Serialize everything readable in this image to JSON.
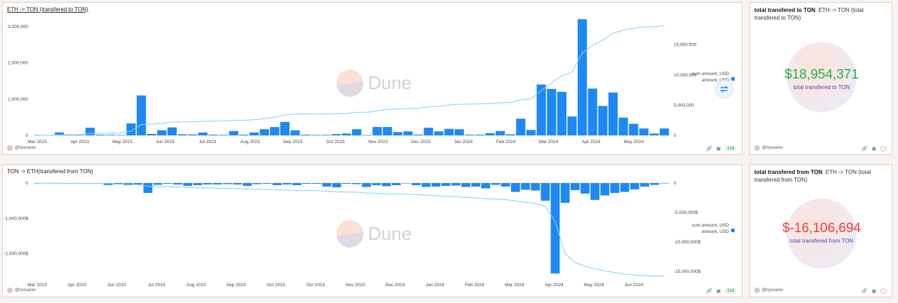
{
  "brand": "Dune",
  "colors": {
    "bar": "#1e88f5",
    "positive": "#22b04b",
    "negative": "#e8413c",
    "subtitle": "#5b3fa0",
    "line": "#8fd0f7"
  },
  "chart_data": [
    {
      "type": "bar",
      "title": "ETH -> TON (transfered to TON)",
      "xlabel": "",
      "ylabel": "",
      "ylim": [
        0,
        3150000
      ],
      "y2lim": [
        0,
        18900000
      ],
      "yticks": [
        "0",
        "1,000,000",
        "2,000,000",
        "3,000,000"
      ],
      "y2ticks": [
        "0",
        "5,000,000",
        "10,000,000",
        "15,000,000"
      ],
      "xticks": [
        "Mar 2023",
        "Apr 2023",
        "May 2023",
        "Jun 2023",
        "Jul 2023",
        "Aug 2023",
        "Sep 2023",
        "Oct 2023",
        "Nov 2023",
        "Dec 2023",
        "Jan 2024",
        "Feb 2024",
        "Mar 2024",
        "Apr 2024",
        "May 2024"
      ],
      "legend": [
        "cum amount, USD",
        "amount, USD"
      ],
      "series": [
        {
          "name": "amount, USD",
          "values": [
            10000,
            5000,
            80000,
            15000,
            10000,
            210000,
            20000,
            15000,
            5000,
            330000,
            1100000,
            40000,
            140000,
            220000,
            30000,
            25000,
            80000,
            20000,
            15000,
            120000,
            20000,
            80000,
            170000,
            230000,
            370000,
            140000,
            20000,
            15000,
            15000,
            35000,
            50000,
            170000,
            10000,
            230000,
            230000,
            90000,
            110000,
            20000,
            210000,
            110000,
            180000,
            170000,
            20000,
            20000,
            60000,
            120000,
            30000,
            460000,
            150000,
            1400000,
            1280000,
            1200000,
            520000,
            3200000,
            1290000,
            810000,
            1180000,
            490000,
            320000,
            190000,
            50000,
            190000
          ]
        },
        {
          "name": "cum amount, USD",
          "values": [
            10000,
            15000,
            95000,
            110000,
            120000,
            330000,
            350000,
            365000,
            370000,
            700000,
            1800000,
            1840000,
            1980000,
            2200000,
            2230000,
            2255000,
            2335000,
            2355000,
            2370000,
            2490000,
            2510000,
            2590000,
            2760000,
            2990000,
            3360000,
            3500000,
            3520000,
            3535000,
            3550000,
            3585000,
            3635000,
            3805000,
            3815000,
            4045000,
            4275000,
            4365000,
            4475000,
            4495000,
            4705000,
            4815000,
            4995000,
            5165000,
            5185000,
            5205000,
            5265000,
            5385000,
            5415000,
            5875000,
            6025000,
            7425000,
            8705000,
            9905000,
            10425000,
            13625000,
            14915000,
            15725000,
            16905000,
            17395000,
            17715000,
            17905000,
            17955000,
            18145000
          ]
        }
      ]
    },
    {
      "type": "bar",
      "title": "TON -> ETH(transfered from TON)",
      "xlabel": "",
      "ylabel": "",
      "ylim": [
        -2700000,
        0
      ],
      "y2lim": [
        -16200000,
        0
      ],
      "yticks": [
        "0",
        "-1,000,000$",
        "-2,000,000$"
      ],
      "y2ticks": [
        "0",
        "-5,000,000$",
        "-10,000,000$",
        "-15,000,000$"
      ],
      "xticks": [
        "Mar 2023",
        "Apr 2023",
        "Jun 2023",
        "Jul 2023",
        "Aug 2023",
        "Sep 2023",
        "Oct 2023",
        "Oct 2023",
        "Nov 2023",
        "Dec 2023",
        "Jan 2024",
        "Feb 2024",
        "Mar 2024",
        "Apr 2024",
        "May 2024",
        "Jun 2024"
      ],
      "legend": [
        "cum amount, USD",
        "amount, USD"
      ],
      "series": [
        {
          "name": "amount, USD",
          "values": [
            -10000,
            -5000,
            -10000,
            -20000,
            -5000,
            -10000,
            -15000,
            -60000,
            -40000,
            -60000,
            -40000,
            -280000,
            -50000,
            -20000,
            -40000,
            -80000,
            -60000,
            -40000,
            -40000,
            -30000,
            -40000,
            -80000,
            -30000,
            -20000,
            -60000,
            -40000,
            -60000,
            -20000,
            -20000,
            -100000,
            -120000,
            -20000,
            -30000,
            -110000,
            -60000,
            -90000,
            -60000,
            -10000,
            -60000,
            -110000,
            -100000,
            -80000,
            -70000,
            -110000,
            -100000,
            -150000,
            -50000,
            -100000,
            -250000,
            -190000,
            -210000,
            -500000,
            -2560000,
            -560000,
            -200000,
            -300000,
            -480000,
            -350000,
            -280000,
            -250000,
            -180000,
            -100000,
            -50000,
            -10000
          ]
        },
        {
          "name": "cum amount, USD",
          "values": [
            -10000,
            -15000,
            -25000,
            -45000,
            -50000,
            -60000,
            -75000,
            -135000,
            -175000,
            -235000,
            -275000,
            -555000,
            -605000,
            -625000,
            -665000,
            -745000,
            -805000,
            -845000,
            -885000,
            -915000,
            -955000,
            -1035000,
            -1065000,
            -1085000,
            -1145000,
            -1185000,
            -1245000,
            -1265000,
            -1285000,
            -1385000,
            -1505000,
            -1525000,
            -1555000,
            -1665000,
            -1725000,
            -1815000,
            -1875000,
            -1885000,
            -1945000,
            -2055000,
            -2155000,
            -2235000,
            -2305000,
            -2415000,
            -2515000,
            -2665000,
            -2715000,
            -2815000,
            -3065000,
            -3255000,
            -3465000,
            -3965000,
            -6525000,
            -12000000,
            -13500000,
            -14100000,
            -14580000,
            -14930000,
            -15210000,
            -15460000,
            -15640000,
            -15740000,
            -15790000,
            -15800000
          ]
        }
      ]
    }
  ],
  "counters": [
    {
      "title_bold": "total transfered to TON",
      "title_rest": "ETH -> TON (total transfered to TON)",
      "value": "$18,954,371",
      "label": "total transfered to TON"
    },
    {
      "title_bold": "total transfered from TON",
      "title_rest": "ETH -> TON (total transfered from TON)",
      "value": "$-16,106,694",
      "label": "total transfered from TON"
    }
  ],
  "footer": {
    "user": "@nyssarex",
    "age": "11d"
  }
}
